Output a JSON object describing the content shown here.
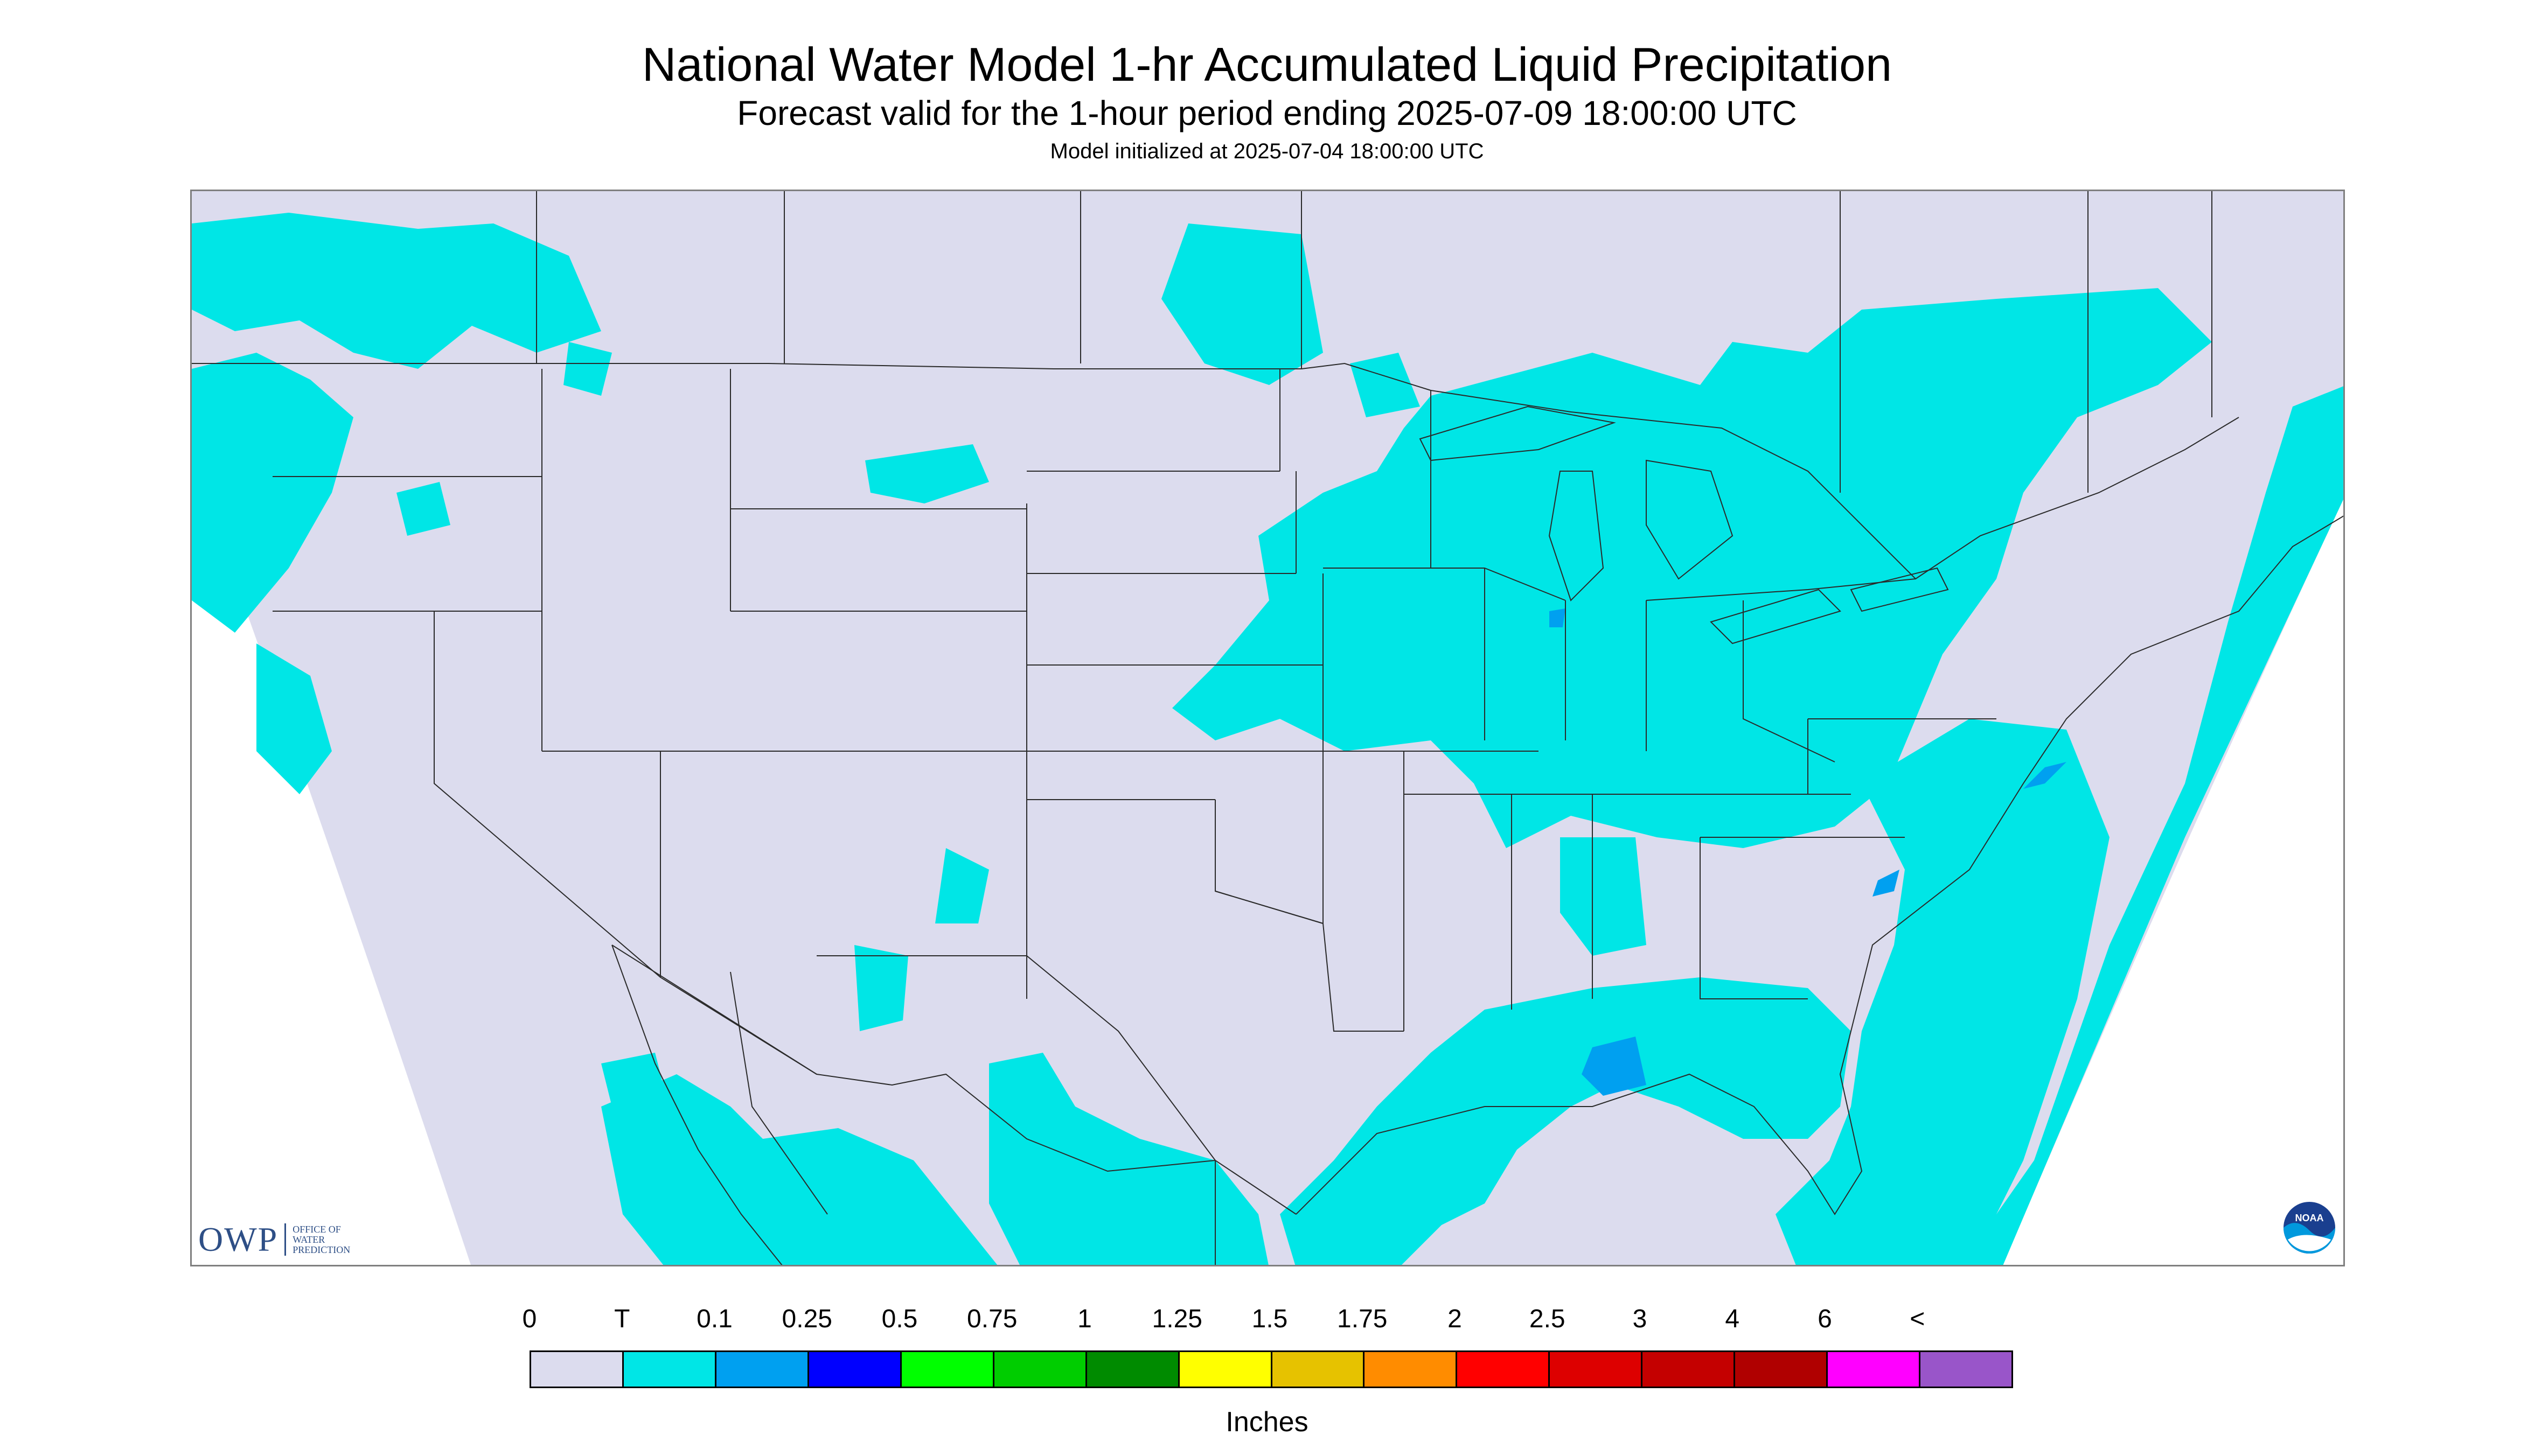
{
  "header": {
    "title": "National Water Model 1-hr Accumulated Liquid Precipitation",
    "subtitle": "Forecast valid for the 1-hour period ending 2025-07-09 18:00:00 UTC",
    "model_init": "Model initialized at 2025-07-04 18:00:00 UTC"
  },
  "map": {
    "background_color": "#dcdcee",
    "precip_color": "#00e6e6",
    "heavy_precip_color": "#00a0f0",
    "border_color": "#2a2a2a"
  },
  "logos": {
    "owp_text": "OWP",
    "owp_line1": "OFFICE OF",
    "owp_line2": "WATER",
    "owp_line3": "PREDICTION",
    "noaa_text": "NOAA"
  },
  "legend": {
    "labels": [
      "0",
      "T",
      "0.1",
      "0.25",
      "0.5",
      "0.75",
      "1",
      "1.25",
      "1.5",
      "1.75",
      "2",
      "2.5",
      "3",
      "4",
      "6",
      "<"
    ],
    "colors": [
      "#dcdcee",
      "#00e6e6",
      "#00a0f0",
      "#0000ff",
      "#00ff00",
      "#00cd00",
      "#008b00",
      "#ffff00",
      "#e6c200",
      "#ff8c00",
      "#ff0000",
      "#dd0000",
      "#c40000",
      "#b00000",
      "#ff00ff",
      "#9955c9"
    ],
    "units": "Inches"
  }
}
